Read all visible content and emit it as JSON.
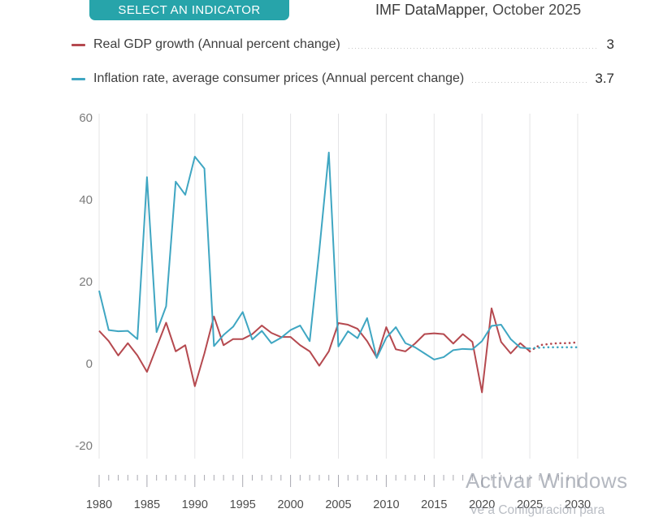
{
  "header": {
    "select_indicator_button": "SELECT AN INDICATOR",
    "brand": "IMF DataMapper,",
    "edition": "October 2025"
  },
  "colors": {
    "accent_teal_button": "#27a4aa",
    "gdp_line_red": "#b5494f",
    "inflation_line_blue": "#3fa6c2"
  },
  "legend": {
    "items": [
      {
        "label": "Real GDP growth (Annual percent change)",
        "value": "3",
        "color": "#b5494f"
      },
      {
        "label": "Inflation rate, average consumer prices (Annual percent change)",
        "value": "3.7",
        "color": "#3fa6c2"
      }
    ]
  },
  "chart_data": {
    "type": "line",
    "title": "",
    "xlabel": "",
    "ylabel": "",
    "xlim": [
      1980,
      2030
    ],
    "ylim": [
      -24,
      62
    ],
    "x_ticks": [
      1980,
      1985,
      1990,
      1995,
      2000,
      2005,
      2010,
      2015,
      2020,
      2025,
      2030
    ],
    "y_ticks": [
      60,
      40,
      20,
      0,
      -20
    ],
    "grid": "vertical-only",
    "legend_position": "top",
    "note": "solid lines 1980-2025, dotted projection 2026-2030",
    "series": [
      {
        "name": "Real GDP growth (Annual percent change)",
        "color": "#b5494f",
        "start_year": 1980,
        "values": [
          8,
          5.5,
          2,
          5,
          2,
          -2,
          4,
          10,
          3,
          4.5,
          -5.5,
          2.5,
          11.5,
          4.5,
          6,
          6,
          7.2,
          9.3,
          7.5,
          6.5,
          6.5,
          4.5,
          3,
          -0.5,
          3,
          9.9,
          9.5,
          8.5,
          5.5,
          1.5,
          8.9,
          3.5,
          3,
          4.9,
          7.2,
          7.4,
          7.2,
          4.9,
          7.2,
          5.3,
          -7,
          13.5,
          5.3,
          2.5,
          5,
          3
        ],
        "projection_years": [
          2026,
          2027,
          2028,
          2029,
          2030
        ],
        "projection": [
          4.5,
          4.8,
          5,
          5,
          5.2
        ],
        "latest_value": "3"
      },
      {
        "name": "Inflation rate, average consumer prices (Annual percent change)",
        "color": "#3fa6c2",
        "start_year": 1980,
        "values": [
          17.8,
          8.2,
          7.9,
          8,
          6,
          45.5,
          7.7,
          14,
          44.4,
          41.2,
          50.5,
          47.6,
          4.3,
          7,
          9,
          12.6,
          5.9,
          8,
          5,
          6.3,
          8.2,
          9.3,
          5.5,
          27.5,
          51.5,
          4.2,
          7.9,
          6.2,
          11.1,
          1.4,
          6.3,
          8.9,
          5,
          4,
          2.5,
          1,
          1.6,
          3.3,
          3.6,
          3.5,
          5.5,
          9.2,
          9.5,
          6,
          3.9,
          3.7
        ],
        "projection_years": [
          2026,
          2027,
          2028,
          2029,
          2030
        ],
        "projection": [
          3.9,
          4,
          4,
          4,
          4
        ],
        "latest_value": "3.7"
      }
    ]
  },
  "watermark": {
    "line1": "Activar Windows",
    "line2": "Ve a Configuración para"
  }
}
